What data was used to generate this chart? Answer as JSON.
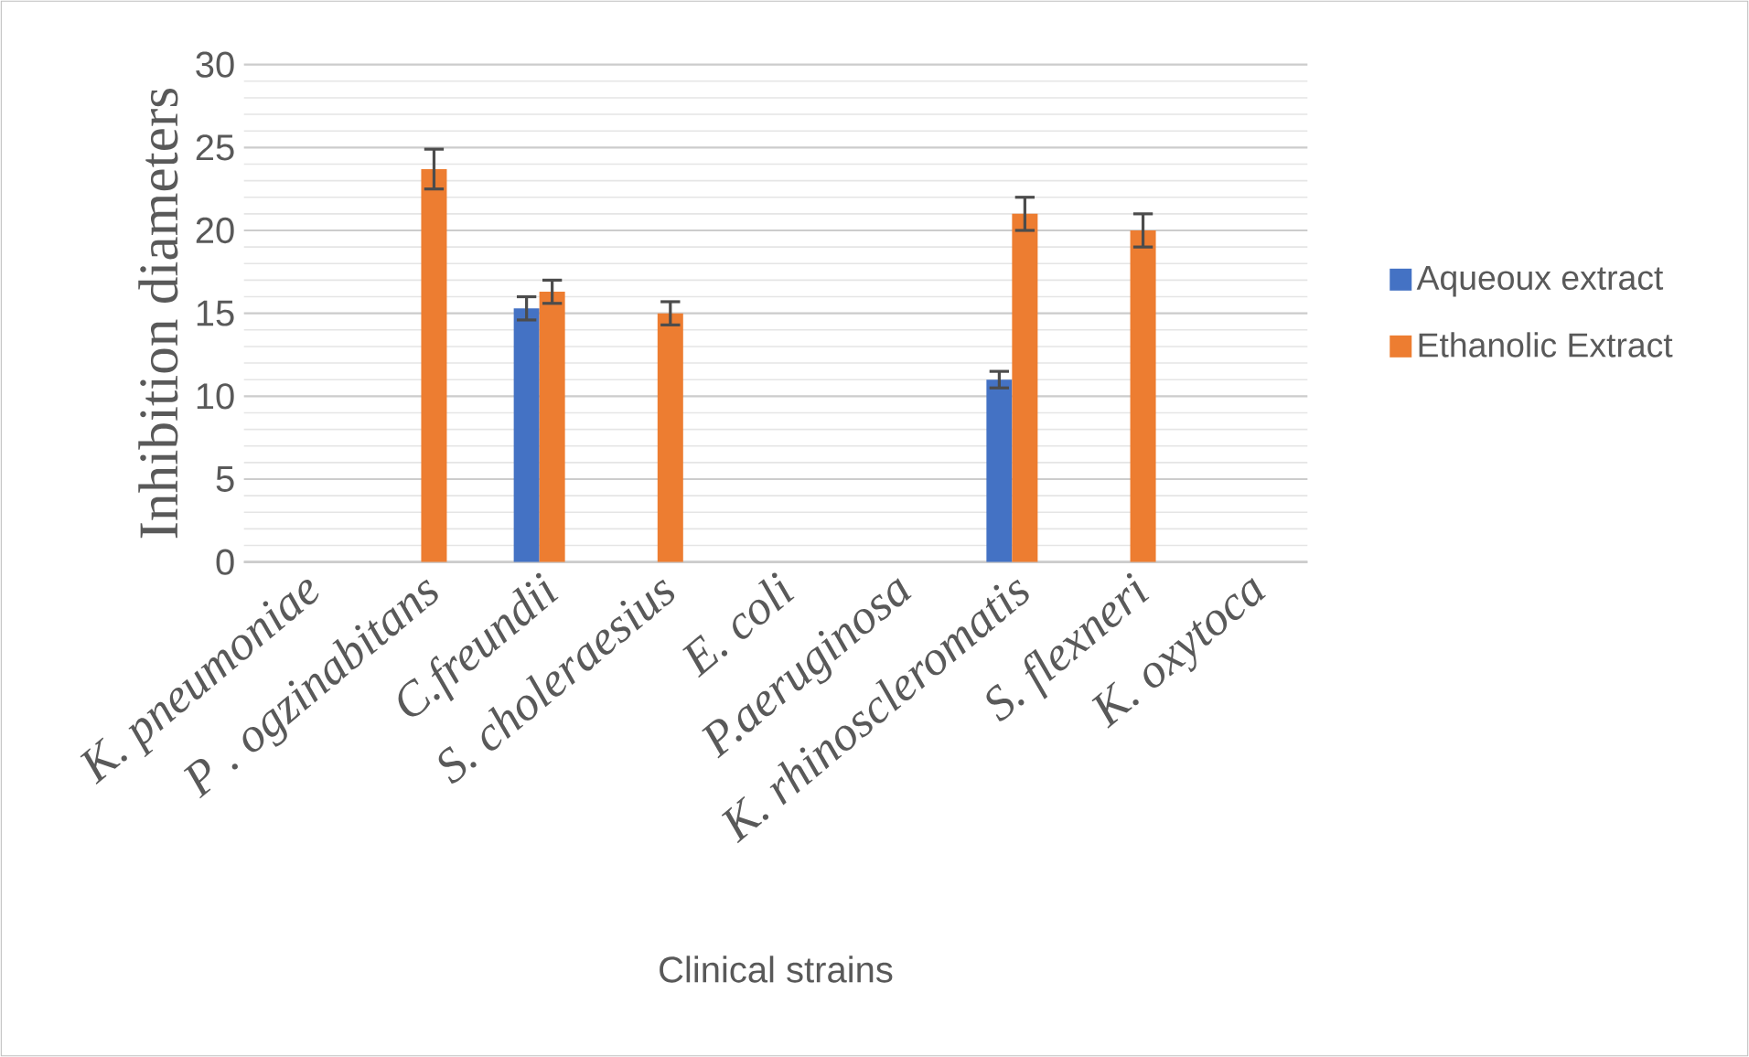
{
  "chart_data": {
    "type": "bar",
    "xlabel": "Clinical strains",
    "ylabel": "Inhibition diameters",
    "categories": [
      "K. pneumoniae",
      "P . ogzinabitans",
      "C.freundii",
      "S. choleraesius",
      "E. coli",
      "P.aeruginosa",
      "K. rhinoscleromatis",
      "S. flexneri",
      "K. oxytoca"
    ],
    "series": [
      {
        "name": "Aqueoux extract",
        "color": "#4472c4",
        "values": [
          0,
          0,
          15.3,
          0,
          0,
          0,
          11,
          0,
          0
        ],
        "errors": [
          null,
          null,
          0.7,
          null,
          null,
          null,
          0.5,
          null,
          null
        ]
      },
      {
        "name": "Ethanolic Extract",
        "color": "#ed7d31",
        "values": [
          0,
          23.7,
          16.3,
          15,
          0,
          0,
          21,
          20,
          0
        ],
        "errors": [
          null,
          1.2,
          0.7,
          0.7,
          null,
          null,
          1,
          1,
          null
        ]
      }
    ],
    "ylim": [
      0,
      30
    ],
    "yticks": [
      0,
      5,
      10,
      15,
      20,
      25,
      30
    ],
    "grid": "y",
    "legend": "right"
  }
}
